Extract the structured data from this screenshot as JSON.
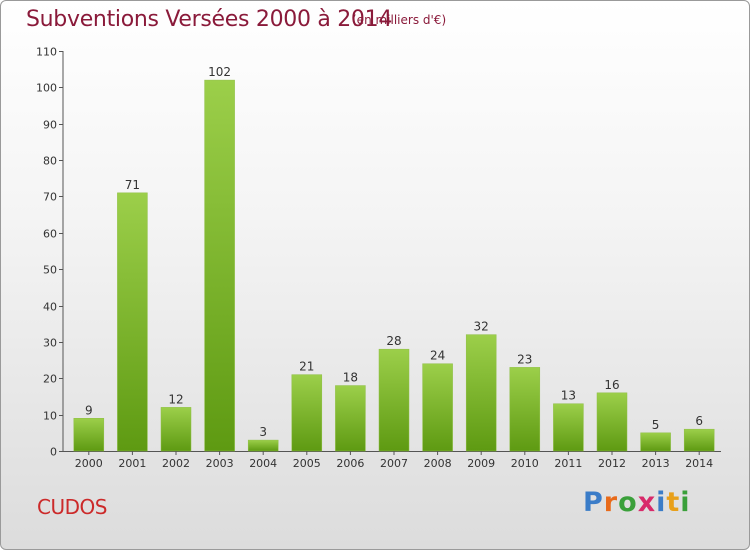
{
  "chart_data": {
    "type": "bar",
    "title": "Subventions Versées 2000 à 2014",
    "subtitle": "(en milliers d'€)",
    "categories": [
      "2000",
      "2001",
      "2002",
      "2003",
      "2004",
      "2005",
      "2006",
      "2007",
      "2008",
      "2009",
      "2010",
      "2011",
      "2012",
      "2013",
      "2014"
    ],
    "values": [
      9,
      71,
      12,
      102,
      3,
      21,
      18,
      28,
      24,
      32,
      23,
      13,
      16,
      5,
      6
    ],
    "xlabel": "",
    "ylabel": "",
    "ylim": [
      0,
      110
    ],
    "yticks": [
      0,
      10,
      20,
      30,
      40,
      50,
      60,
      70,
      80,
      90,
      100,
      110
    ],
    "grid": false,
    "legend": "none",
    "bar_color_top": "#9ccf4a",
    "bar_color_bottom": "#5e9a12"
  },
  "commune": "CUDOS",
  "logo": {
    "text": "Proxiti",
    "letters": [
      {
        "ch": "P",
        "color": "#3a7cc8"
      },
      {
        "ch": "r",
        "color": "#e86a1a"
      },
      {
        "ch": "o",
        "color": "#3aa03a"
      },
      {
        "ch": "x",
        "color": "#d82a6a"
      },
      {
        "ch": "i",
        "color": "#3a7cc8"
      },
      {
        "ch": "t",
        "color": "#e8a01a"
      },
      {
        "ch": "i",
        "color": "#3aa03a"
      }
    ]
  }
}
